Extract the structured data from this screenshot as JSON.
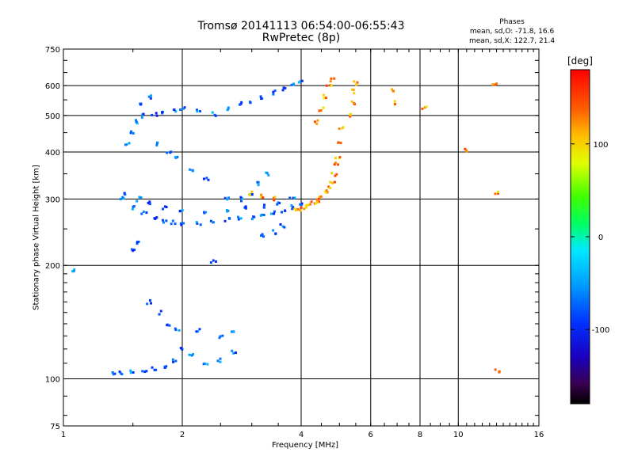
{
  "header": {
    "title_line1": "Tromsø 20141113 06:54:00-06:55:43",
    "title_line2": "RwPretec (8p)",
    "stats_heading": "Phases",
    "stats_line1": "mean, sd,O: -71.8, 16.6",
    "stats_line2": "mean, sd,X: 122.7, 21.4"
  },
  "colorbar": {
    "unit": "[deg]",
    "ticks": [
      "100",
      "0",
      "-100"
    ],
    "tick_values": [
      100,
      0,
      -100
    ],
    "range": [
      -180,
      180
    ]
  },
  "chart_data": {
    "type": "scatter",
    "xlabel": "Frequency [MHz]",
    "ylabel": "Stationary phase Virtual Height [km]",
    "x_scale": "log",
    "y_scale": "log",
    "xlim": [
      1,
      16
    ],
    "ylim": [
      75,
      750
    ],
    "x_ticks": [
      1,
      2,
      4,
      6,
      8,
      10,
      16
    ],
    "x_tick_labels": [
      "1",
      "2",
      "4",
      "6",
      "8",
      "10",
      "16"
    ],
    "y_ticks": [
      75,
      100,
      200,
      300,
      400,
      500,
      600,
      750
    ],
    "y_tick_labels": [
      "75",
      "100",
      "200",
      "300",
      "400",
      "500",
      "600",
      "750"
    ],
    "grid": true,
    "color_by": "phase [deg]",
    "series": [
      {
        "name": "O",
        "mean_phase": -71.8,
        "points": [
          [
            1.35,
            103
          ],
          [
            1.4,
            104
          ],
          [
            1.5,
            104
          ],
          [
            1.6,
            105
          ],
          [
            1.7,
            106
          ],
          [
            1.8,
            108
          ],
          [
            1.9,
            112
          ],
          [
            2.0,
            120
          ],
          [
            2.1,
            115
          ],
          [
            2.3,
            110
          ],
          [
            2.5,
            112
          ],
          [
            2.7,
            118
          ],
          [
            1.65,
            160
          ],
          [
            1.75,
            150
          ],
          [
            1.85,
            140
          ],
          [
            1.95,
            135
          ],
          [
            2.2,
            135
          ],
          [
            2.5,
            130
          ],
          [
            2.7,
            132
          ],
          [
            1.4,
            300
          ],
          [
            1.5,
            285
          ],
          [
            1.6,
            275
          ],
          [
            1.7,
            268
          ],
          [
            1.8,
            262
          ],
          [
            1.9,
            260
          ],
          [
            2.0,
            259
          ],
          [
            2.2,
            259
          ],
          [
            2.4,
            262
          ],
          [
            2.6,
            264
          ],
          [
            2.8,
            266
          ],
          [
            3.0,
            268
          ],
          [
            3.2,
            272
          ],
          [
            3.4,
            275
          ],
          [
            3.6,
            280
          ],
          [
            3.8,
            285
          ],
          [
            4.0,
            292
          ],
          [
            1.45,
            310
          ],
          [
            1.55,
            300
          ],
          [
            1.65,
            292
          ],
          [
            1.8,
            285
          ],
          [
            2.0,
            280
          ],
          [
            2.3,
            278
          ],
          [
            2.6,
            280
          ],
          [
            2.9,
            284
          ],
          [
            3.2,
            288
          ],
          [
            3.5,
            294
          ],
          [
            3.8,
            300
          ],
          [
            1.45,
            420
          ],
          [
            1.5,
            450
          ],
          [
            1.55,
            480
          ],
          [
            1.6,
            500
          ],
          [
            1.7,
            505
          ],
          [
            1.8,
            510
          ],
          [
            1.9,
            515
          ],
          [
            2.0,
            520
          ],
          [
            2.2,
            515
          ],
          [
            2.4,
            505
          ],
          [
            2.6,
            520
          ],
          [
            2.8,
            535
          ],
          [
            3.0,
            545
          ],
          [
            3.2,
            560
          ],
          [
            3.4,
            575
          ],
          [
            3.6,
            590
          ],
          [
            3.8,
            600
          ],
          [
            4.0,
            610
          ],
          [
            1.55,
            540
          ],
          [
            1.65,
            560
          ],
          [
            1.75,
            420
          ],
          [
            1.85,
            400
          ],
          [
            1.95,
            390
          ],
          [
            2.1,
            360
          ],
          [
            2.3,
            340
          ],
          [
            2.6,
            300
          ],
          [
            2.8,
            300
          ],
          [
            3.0,
            310
          ],
          [
            3.1,
            330
          ],
          [
            3.3,
            350
          ],
          [
            3.2,
            240
          ],
          [
            3.4,
            245
          ],
          [
            3.6,
            255
          ],
          [
            1.5,
            220
          ],
          [
            1.55,
            230
          ],
          [
            2.4,
            205
          ],
          [
            1.05,
            195
          ]
        ]
      },
      {
        "name": "X",
        "mean_phase": 122.7,
        "points": [
          [
            3.9,
            280
          ],
          [
            4.0,
            282
          ],
          [
            4.1,
            285
          ],
          [
            4.2,
            288
          ],
          [
            4.3,
            292
          ],
          [
            4.4,
            296
          ],
          [
            4.5,
            302
          ],
          [
            4.6,
            310
          ],
          [
            4.7,
            320
          ],
          [
            4.8,
            335
          ],
          [
            4.85,
            350
          ],
          [
            4.9,
            370
          ],
          [
            4.95,
            390
          ],
          [
            5.0,
            420
          ],
          [
            5.05,
            460
          ],
          [
            4.4,
            480
          ],
          [
            4.5,
            520
          ],
          [
            4.6,
            560
          ],
          [
            4.7,
            600
          ],
          [
            4.8,
            620
          ],
          [
            5.3,
            500
          ],
          [
            5.4,
            540
          ],
          [
            5.45,
            580
          ],
          [
            5.5,
            610
          ],
          [
            3.0,
            310
          ],
          [
            3.2,
            305
          ],
          [
            3.4,
            300
          ],
          [
            6.8,
            580
          ],
          [
            7.0,
            540
          ],
          [
            8.2,
            525
          ],
          [
            10.5,
            405
          ],
          [
            12.4,
            600
          ],
          [
            12.5,
            310
          ],
          [
            12.6,
            105
          ]
        ]
      }
    ]
  }
}
